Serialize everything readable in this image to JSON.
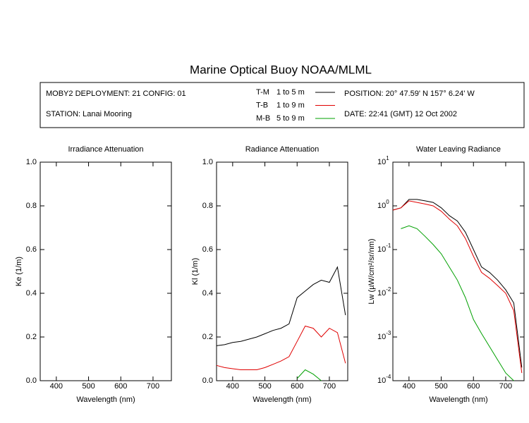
{
  "title": "Marine Optical Buoy NOAA/MLML",
  "info": {
    "deployment": "MOBY2 DEPLOYMENT: 21 CONFIG: 01",
    "station": "STATION: Lanai Mooring",
    "position": "POSITION: 20° 47.59' N   157° 6.24' W",
    "date": "DATE: 22:41 (GMT) 12 Oct 2002"
  },
  "legend": [
    {
      "name": "T-M",
      "range": "1 to 5  m",
      "color": "#000000"
    },
    {
      "name": "T-B",
      "range": "1 to 9  m",
      "color": "#e00000"
    },
    {
      "name": "M-B",
      "range": "5 to 9  m",
      "color": "#00a000"
    }
  ],
  "chart_data": [
    {
      "type": "line",
      "title": "Irradiance Attenuation",
      "x_label": "Wavelength (nm)",
      "y_label": "Ke  (1/m)",
      "xlim": [
        350,
        757
      ],
      "xticks": [
        400,
        500,
        600,
        700
      ],
      "ylim": [
        0,
        1
      ],
      "yticks": [
        {
          "value": 0,
          "label": "0.0"
        },
        0.2,
        0.4,
        0.6,
        0.8,
        {
          "value": 1,
          "label": "1.0"
        }
      ],
      "x": [],
      "series": []
    },
    {
      "type": "line",
      "title": "Radiance Attenuation",
      "x_label": "Wavelength (nm)",
      "y_label": "Kl  (1/m)",
      "xlim": [
        350,
        757
      ],
      "xticks": [
        400,
        500,
        600,
        700
      ],
      "ylim": [
        0,
        1
      ],
      "yticks": [
        {
          "value": 0,
          "label": "0.0"
        },
        0.2,
        0.4,
        0.6,
        0.8,
        {
          "value": 1,
          "label": "1.0"
        }
      ],
      "x": [
        350,
        375,
        400,
        425,
        450,
        475,
        500,
        525,
        550,
        575,
        600,
        625,
        650,
        675,
        700,
        725,
        750
      ],
      "series": [
        {
          "color": "#000000",
          "values": [
            0.16,
            0.165,
            0.175,
            0.18,
            0.19,
            0.2,
            0.215,
            0.23,
            0.24,
            0.26,
            0.38,
            0.41,
            0.44,
            0.46,
            0.45,
            0.52,
            0.3
          ]
        },
        {
          "color": "#e00000",
          "values": [
            0.07,
            0.06,
            0.055,
            0.05,
            0.05,
            0.05,
            0.06,
            0.075,
            0.09,
            0.11,
            0.18,
            0.25,
            0.24,
            0.2,
            0.24,
            0.22,
            0.08
          ]
        },
        {
          "color": "#00a000",
          "values": [
            null,
            null,
            null,
            null,
            null,
            null,
            null,
            null,
            null,
            null,
            0.01,
            0.05,
            0.03,
            0.0,
            null,
            null,
            null
          ]
        }
      ]
    },
    {
      "type": "line",
      "title": "Water Leaving Radiance",
      "x_label": "Wavelength (nm)",
      "y_label": "Lw  (µW/cm²/sr/nm)",
      "log": true,
      "xlim": [
        350,
        757
      ],
      "xticks": [
        400,
        500,
        600,
        700
      ],
      "ylim": [
        0.0001,
        10
      ],
      "yticks": [
        {
          "value": 0.0001,
          "label": "10",
          "exponent": "-4"
        },
        {
          "value": 0.001,
          "label": "10",
          "exponent": "-3"
        },
        {
          "value": 0.01,
          "label": "10",
          "exponent": "-2"
        },
        {
          "value": 0.1,
          "label": "10",
          "exponent": "-1"
        },
        {
          "value": 1,
          "label": "10",
          "exponent": "0"
        },
        {
          "value": 10,
          "label": "10",
          "exponent": "1"
        }
      ],
      "x": [
        350,
        375,
        400,
        425,
        450,
        475,
        500,
        525,
        550,
        575,
        600,
        625,
        650,
        675,
        700,
        725,
        750
      ],
      "series": [
        {
          "color": "#000000",
          "values": [
            0.8,
            0.9,
            1.4,
            1.4,
            1.3,
            1.2,
            0.9,
            0.6,
            0.45,
            0.25,
            0.1,
            0.04,
            0.03,
            0.02,
            0.012,
            0.006,
            0.0002
          ]
        },
        {
          "color": "#e00000",
          "values": [
            0.8,
            0.9,
            1.3,
            1.2,
            1.1,
            1.0,
            0.75,
            0.5,
            0.35,
            0.18,
            0.07,
            0.03,
            0.022,
            0.015,
            0.01,
            0.004,
            0.00015
          ]
        },
        {
          "color": "#00a000",
          "values": [
            null,
            0.3,
            0.35,
            0.3,
            0.2,
            0.13,
            0.08,
            0.04,
            0.02,
            0.008,
            0.0025,
            0.0012,
            0.0006,
            0.0003,
            0.00015,
            0.0001,
            null
          ]
        }
      ]
    }
  ]
}
